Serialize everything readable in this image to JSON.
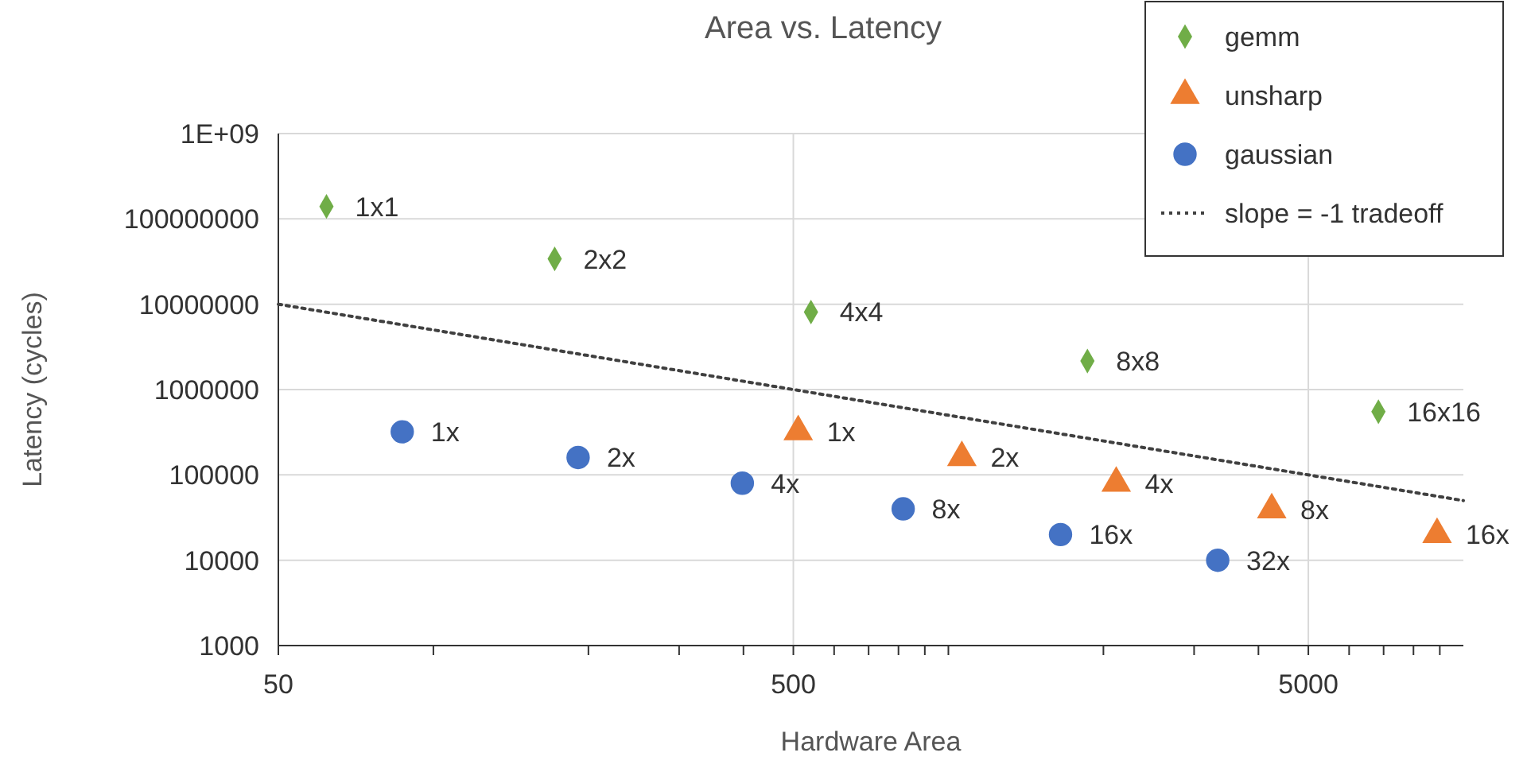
{
  "chart_data": {
    "type": "scatter",
    "title": "Area vs. Latency",
    "xlabel": "Hardware Area",
    "ylabel": "Latency (cycles)",
    "log": "xy",
    "grid": true,
    "legend": "top right",
    "xlim": [
      50,
      10000
    ],
    "ylim": [
      1000,
      1000000000
    ],
    "xticks": [
      50,
      {
        "value": 100,
        "label": null
      },
      {
        "value": 200,
        "label": null
      },
      {
        "value": 300,
        "label": null
      },
      {
        "value": 400,
        "label": null
      },
      500,
      {
        "value": 600,
        "label": null
      },
      {
        "value": 700,
        "label": null
      },
      {
        "value": 800,
        "label": null
      },
      {
        "value": 900,
        "label": null
      },
      {
        "value": 1000,
        "label": null
      },
      {
        "value": 2000,
        "label": null
      },
      {
        "value": 3000,
        "label": null
      },
      {
        "value": 4000,
        "label": null
      },
      5000,
      {
        "value": 6000,
        "label": null
      },
      {
        "value": 7000,
        "label": null
      },
      {
        "value": 8000,
        "label": null
      },
      {
        "value": 9000,
        "label": null
      }
    ],
    "yticks": [
      1000,
      10000,
      100000,
      1000000,
      10000000,
      100000000,
      {
        "value": 1000000000,
        "label": "1E+09"
      }
    ],
    "series": [
      {
        "name": "gemm",
        "color": "#70ad47",
        "marker": "diamond",
        "x": [
          62,
          172,
          541,
          1862,
          6840
        ],
        "values": [
          140000000,
          34000000,
          8100000,
          2160000,
          550000
        ]
      },
      {
        "name": "unsharp",
        "color": "#ed7d31",
        "marker": "triangle",
        "x": [
          511,
          1062,
          2118,
          4245,
          8890
        ],
        "values": [
          320000,
          160000,
          80000,
          39000,
          20000
        ]
      },
      {
        "name": "gaussian",
        "color": "#4472c4",
        "marker": "circle",
        "x": [
          87,
          191,
          398,
          817,
          1651,
          3334
        ],
        "values": [
          320000,
          160000,
          80000,
          40000,
          20000,
          10000
        ]
      },
      {
        "name": "slope = -1 tradeoff",
        "type": "line",
        "color": "#404040",
        "line_style": "dotted",
        "marker": "none",
        "x": [
          50,
          10000
        ],
        "values": [
          10000000,
          50000
        ]
      }
    ],
    "annotations": [
      {
        "text": "1x1",
        "x": 62,
        "y": 140000000
      },
      {
        "text": "2x2",
        "x": 172,
        "y": 34000000
      },
      {
        "text": "4x4",
        "x": 541,
        "y": 8100000
      },
      {
        "text": "8x8",
        "x": 1862,
        "y": 2160000
      },
      {
        "text": "16x16",
        "x": 6840,
        "y": 550000
      },
      {
        "text": "1x",
        "x": 511,
        "y": 320000
      },
      {
        "text": "2x",
        "x": 1062,
        "y": 160000
      },
      {
        "text": "4x",
        "x": 2118,
        "y": 80000
      },
      {
        "text": "8x",
        "x": 4245,
        "y": 39000
      },
      {
        "text": "16x",
        "x": 8890,
        "y": 20000
      },
      {
        "text": "1x",
        "x": 87,
        "y": 320000
      },
      {
        "text": "2x",
        "x": 191,
        "y": 160000
      },
      {
        "text": "4x",
        "x": 398,
        "y": 80000
      },
      {
        "text": "8x",
        "x": 817,
        "y": 40000
      },
      {
        "text": "16x",
        "x": 1651,
        "y": 20000
      },
      {
        "text": "32x",
        "x": 3334,
        "y": 10000
      }
    ]
  }
}
